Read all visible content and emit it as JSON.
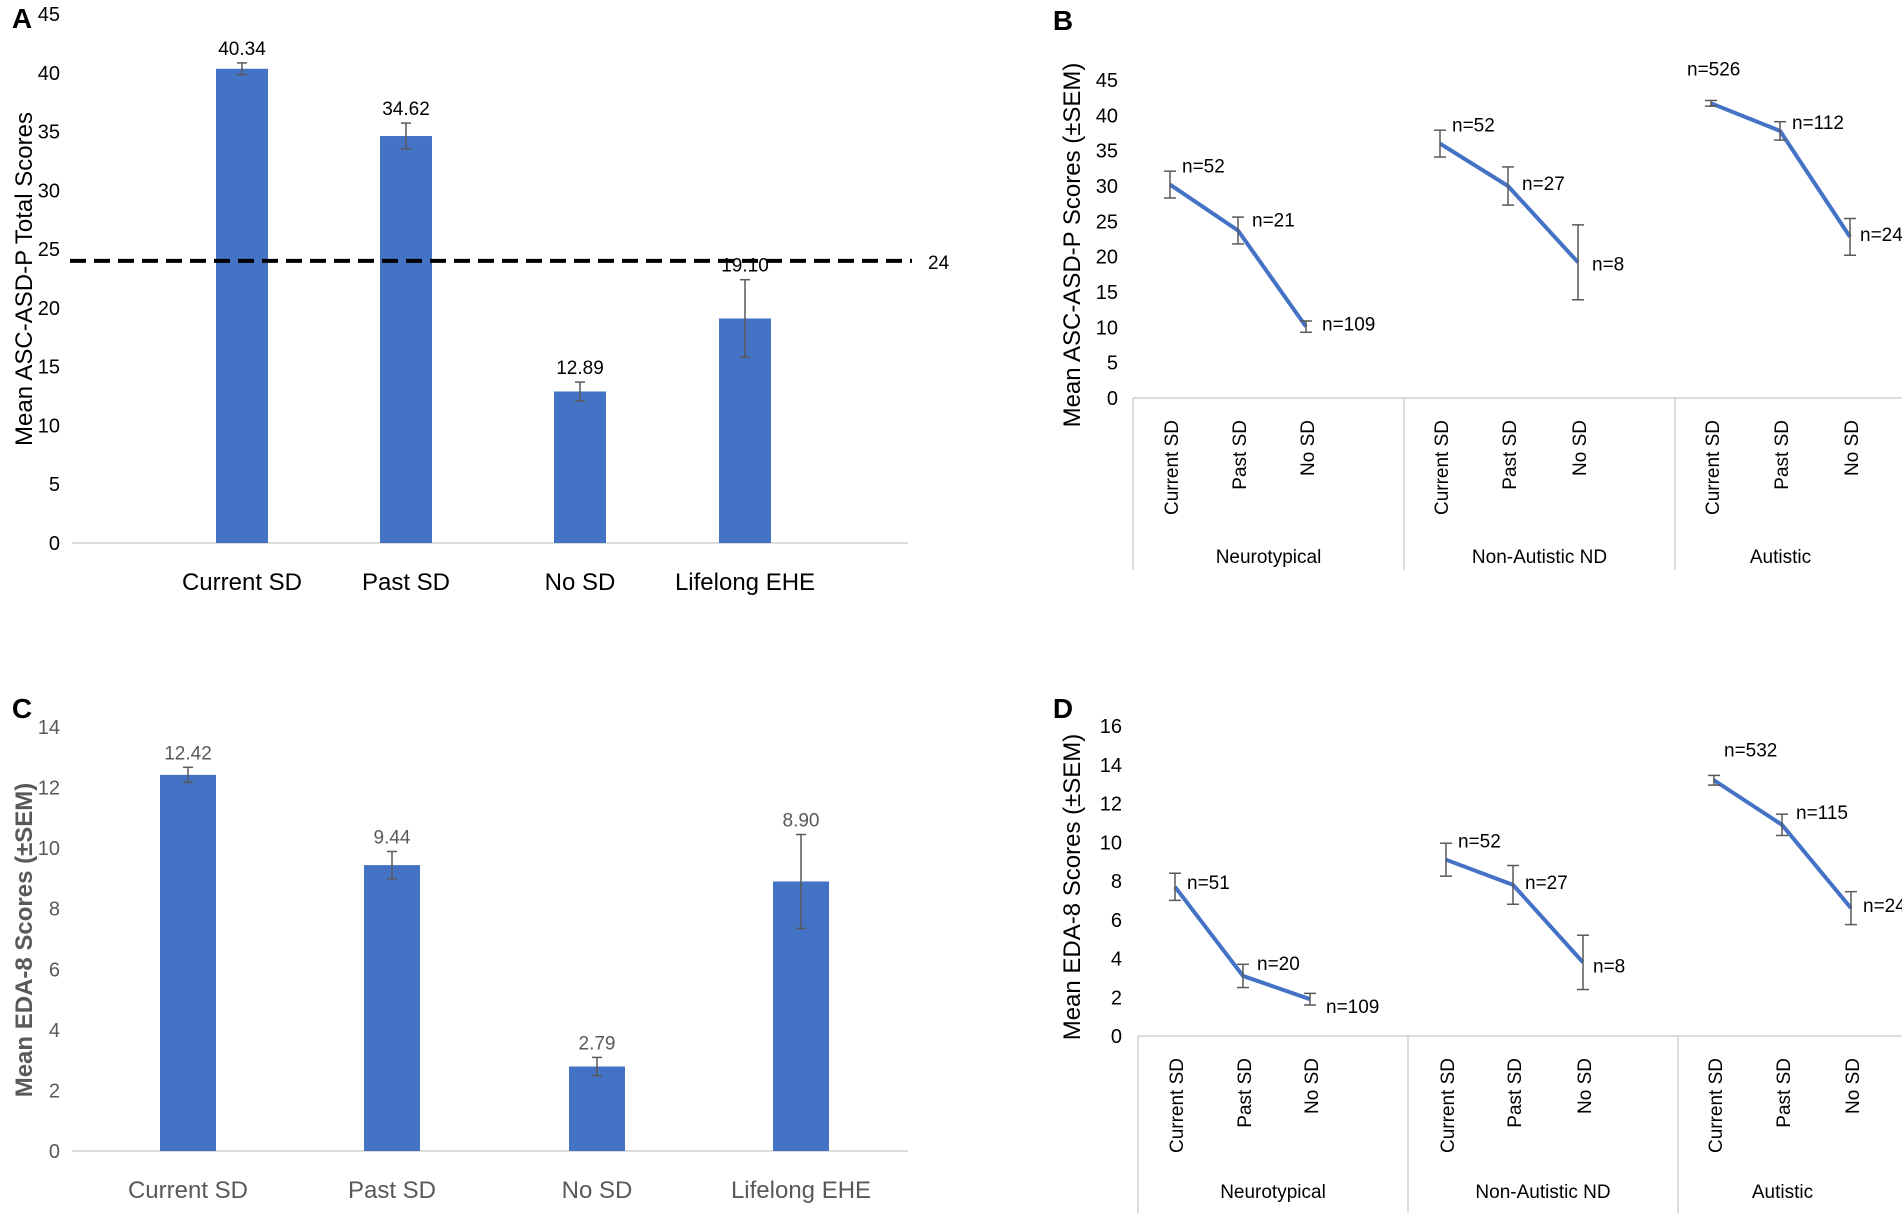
{
  "colors": {
    "bar": "#4472C4",
    "line": "#4472C4",
    "error": "#595959",
    "axis": "#d0d0d0",
    "threshold": "#000000"
  },
  "chart_data": [
    {
      "panel": "A",
      "type": "bar",
      "ylabel": "Mean ASC-ASD-P Total Scores",
      "ylim": [
        0,
        45
      ],
      "yticks": [
        0,
        5,
        10,
        15,
        20,
        25,
        30,
        35,
        40,
        45
      ],
      "categories": [
        "Current SD",
        "Past SD",
        "No SD",
        "Lifelong EHE"
      ],
      "values": [
        40.34,
        34.62,
        12.89,
        19.1
      ],
      "value_labels": [
        "40.34",
        "34.62",
        "12.89",
        "19.10"
      ],
      "errors": [
        0.5,
        1.1,
        0.8,
        3.3
      ],
      "threshold": {
        "value": 24,
        "label": "24",
        "style": "dashed"
      }
    },
    {
      "panel": "B",
      "type": "line",
      "ylabel": "Mean ASC-ASD-P Scores (±SEM)",
      "ylim": [
        0,
        45
      ],
      "yticks": [
        0,
        5,
        10,
        15,
        20,
        25,
        30,
        35,
        40,
        45
      ],
      "categories": [
        "Current SD",
        "Past SD",
        "No SD"
      ],
      "groups": [
        {
          "name": "Neurotypical",
          "values": [
            30.2,
            23.7,
            10.1
          ],
          "errors": [
            1.9,
            1.9,
            0.8
          ],
          "n_labels": [
            "n=52",
            "n=21",
            "n=109"
          ]
        },
        {
          "name": "Non-Autistic ND",
          "values": [
            36.0,
            30.0,
            19.2
          ],
          "errors": [
            1.9,
            2.7,
            5.3
          ],
          "n_labels": [
            "n=52",
            "n=27",
            "n=8"
          ]
        },
        {
          "name": "Autistic",
          "values": [
            41.7,
            37.8,
            22.8
          ],
          "errors": [
            0.4,
            1.3,
            2.6
          ],
          "n_labels": [
            "n=526",
            "n=112",
            "n=24"
          ]
        }
      ]
    },
    {
      "panel": "C",
      "type": "bar",
      "ylabel": "Mean EDA-8 Scores (±SEM)",
      "ylim": [
        0,
        14
      ],
      "yticks": [
        0,
        2,
        4,
        6,
        8,
        10,
        12,
        14
      ],
      "categories": [
        "Current SD",
        "Past SD",
        "No SD",
        "Lifelong EHE"
      ],
      "values": [
        12.42,
        9.44,
        2.79,
        8.9
      ],
      "value_labels": [
        "12.42",
        "9.44",
        "2.79",
        "8.90"
      ],
      "errors": [
        0.25,
        0.45,
        0.3,
        1.55
      ]
    },
    {
      "panel": "D",
      "type": "line",
      "ylabel": "Mean EDA-8 Scores (±SEM)",
      "ylim": [
        0,
        16
      ],
      "yticks": [
        0,
        2,
        4,
        6,
        8,
        10,
        12,
        14,
        16
      ],
      "categories": [
        "Current SD",
        "Past SD",
        "No SD"
      ],
      "groups": [
        {
          "name": "Neurotypical",
          "values": [
            7.7,
            3.1,
            1.9
          ],
          "errors": [
            0.7,
            0.6,
            0.3
          ],
          "n_labels": [
            "n=51",
            "n=20",
            "n=109"
          ]
        },
        {
          "name": "Non-Autistic ND",
          "values": [
            9.1,
            7.8,
            3.8
          ],
          "errors": [
            0.85,
            1.0,
            1.4
          ],
          "n_labels": [
            "n=52",
            "n=27",
            "n=8"
          ]
        },
        {
          "name": "Autistic",
          "values": [
            13.2,
            10.9,
            6.6
          ],
          "errors": [
            0.25,
            0.55,
            0.85
          ],
          "n_labels": [
            "n=532",
            "n=115",
            "n=24"
          ]
        }
      ]
    }
  ]
}
